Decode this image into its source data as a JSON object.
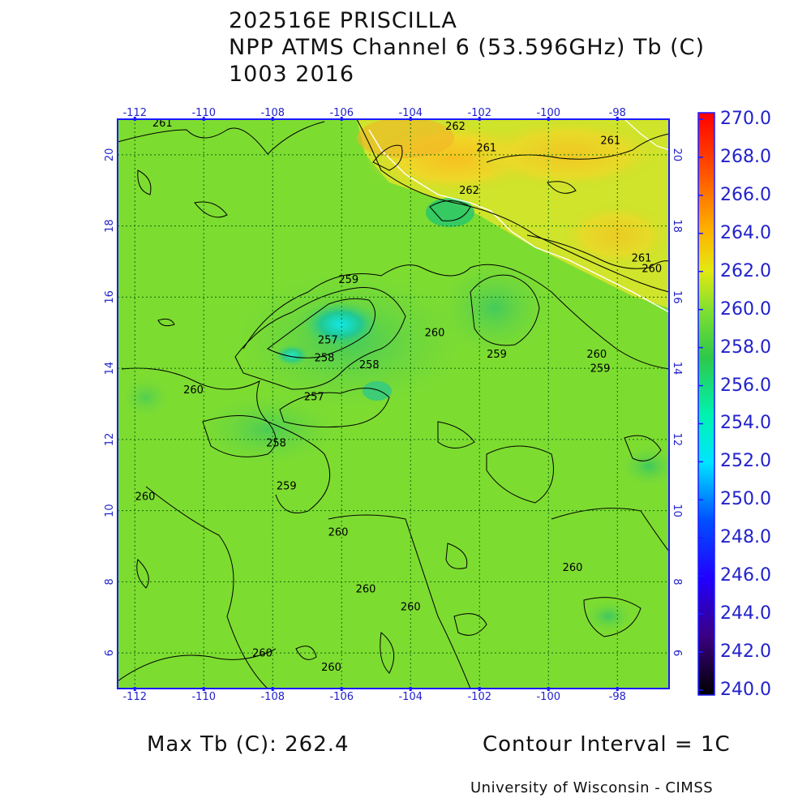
{
  "title": {
    "line1": "202516E PRISCILLA",
    "line2": "NPP ATMS Channel 6 (53.596GHz) Tb (C)",
    "line3": "1003 2016"
  },
  "map": {
    "lon_ticks": [
      "-112",
      "-110",
      "-108",
      "-106",
      "-104",
      "-102",
      "-100",
      "-98"
    ],
    "lat_ticks": [
      "6",
      "8",
      "10",
      "12",
      "14",
      "16",
      "18",
      "20"
    ],
    "lon_range": [
      -112.5,
      -96.5
    ],
    "lat_range": [
      5.0,
      21.0
    ],
    "contour_labels": [
      {
        "text": "261",
        "lon": -111.2,
        "lat": 20.8
      },
      {
        "text": "262",
        "lon": -102.7,
        "lat": 20.7
      },
      {
        "text": "261",
        "lon": -101.8,
        "lat": 20.1
      },
      {
        "text": "261",
        "lon": -98.2,
        "lat": 20.3
      },
      {
        "text": "262",
        "lon": -102.3,
        "lat": 18.9
      },
      {
        "text": "261",
        "lon": -97.3,
        "lat": 17.0
      },
      {
        "text": "260",
        "lon": -97.0,
        "lat": 16.7
      },
      {
        "text": "259",
        "lon": -105.8,
        "lat": 16.4
      },
      {
        "text": "260",
        "lon": -103.3,
        "lat": 14.9
      },
      {
        "text": "259",
        "lon": -101.5,
        "lat": 14.3
      },
      {
        "text": "260",
        "lon": -98.6,
        "lat": 14.3
      },
      {
        "text": "259",
        "lon": -98.5,
        "lat": 13.9
      },
      {
        "text": "257",
        "lon": -106.4,
        "lat": 14.7
      },
      {
        "text": "258",
        "lon": -106.5,
        "lat": 14.2
      },
      {
        "text": "258",
        "lon": -105.2,
        "lat": 14.0
      },
      {
        "text": "257",
        "lon": -106.8,
        "lat": 13.1
      },
      {
        "text": "260",
        "lon": -110.3,
        "lat": 13.3
      },
      {
        "text": "258",
        "lon": -107.9,
        "lat": 11.8
      },
      {
        "text": "259",
        "lon": -107.6,
        "lat": 10.6
      },
      {
        "text": "260",
        "lon": -111.7,
        "lat": 10.3
      },
      {
        "text": "260",
        "lon": -106.1,
        "lat": 9.3
      },
      {
        "text": "260",
        "lon": -99.3,
        "lat": 8.3
      },
      {
        "text": "260",
        "lon": -105.3,
        "lat": 7.7
      },
      {
        "text": "260",
        "lon": -104.0,
        "lat": 7.2
      },
      {
        "text": "260",
        "lon": -108.3,
        "lat": 5.9
      },
      {
        "text": "260",
        "lon": -106.3,
        "lat": 5.5
      }
    ]
  },
  "colorbar": {
    "ticks": [
      "270.0",
      "268.0",
      "266.0",
      "264.0",
      "262.0",
      "260.0",
      "258.0",
      "256.0",
      "254.0",
      "252.0",
      "250.0",
      "248.0",
      "246.0",
      "244.0",
      "242.0",
      "240.0"
    ],
    "min": 240.0,
    "max": 270.0
  },
  "footer": {
    "max_tb": "Max Tb (C): 262.4",
    "contour_interval": "Contour Interval = 1C",
    "credit": "University of Wisconsin - CIMSS"
  },
  "colors": {
    "frame": "#1a1aff",
    "grid": "#0c6a0c",
    "tick_label": "#2222cc",
    "base_field": "#7ddc30",
    "coast": "#ffffff",
    "contour": "#000000"
  }
}
